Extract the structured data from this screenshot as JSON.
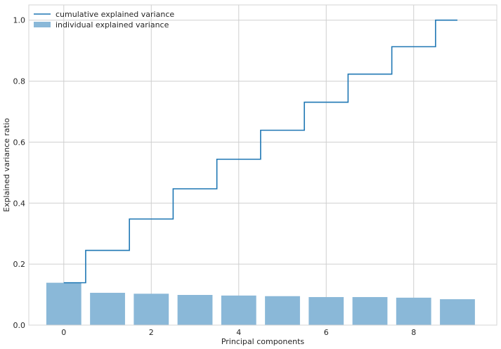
{
  "chart_data": {
    "type": "bar",
    "xlabel": "Principal components",
    "ylabel": "Explained variance ratio",
    "xlim": [
      -0.8,
      9.9
    ],
    "ylim": [
      0,
      1.05
    ],
    "xticks": [
      0,
      2,
      4,
      6,
      8
    ],
    "yticks": [
      0.0,
      0.2,
      0.4,
      0.6,
      0.8,
      1.0
    ],
    "xtick_labels": [
      "0",
      "2",
      "4",
      "6",
      "8"
    ],
    "ytick_labels": [
      "0.0",
      "0.2",
      "0.4",
      "0.6",
      "0.8",
      "1.0"
    ],
    "grid": true,
    "legend_position": "top-left",
    "x": [
      0,
      1,
      2,
      3,
      4,
      5,
      6,
      7,
      8,
      9
    ],
    "series": [
      {
        "name": "individual explained variance",
        "kind": "bar",
        "color": "#8ab8d8",
        "values": [
          0.139,
          0.106,
          0.103,
          0.099,
          0.097,
          0.095,
          0.092,
          0.092,
          0.09,
          0.085
        ]
      },
      {
        "name": "cumulative explained variance",
        "kind": "step",
        "color": "#1f77b4",
        "values": [
          0.139,
          0.245,
          0.348,
          0.447,
          0.544,
          0.639,
          0.731,
          0.823,
          0.913,
          1.0
        ]
      }
    ]
  }
}
